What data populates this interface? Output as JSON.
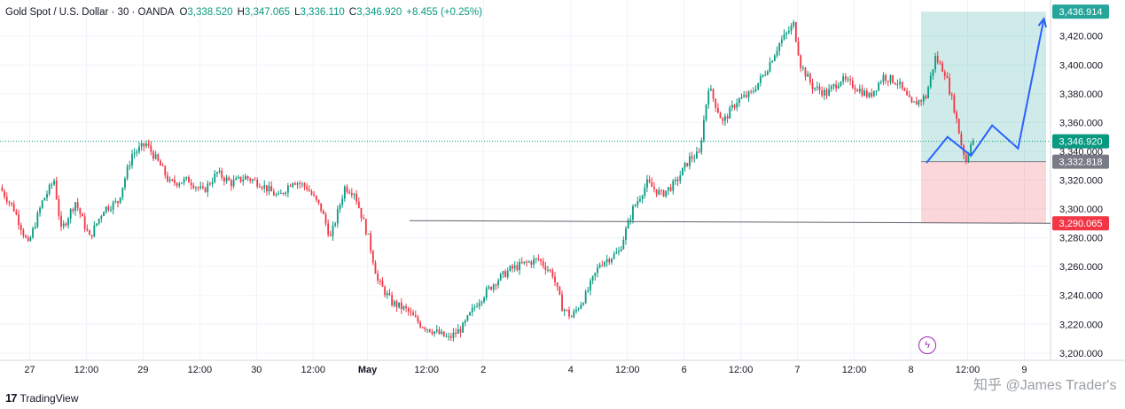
{
  "header": {
    "symbol": "Gold Spot / U.S. Dollar · 30 · OANDA",
    "open_label": "O",
    "open": "3,338.520",
    "high_label": "H",
    "high": "3,347.065",
    "low_label": "L",
    "low": "3,336.110",
    "close_label": "C",
    "close": "3,346.920",
    "change": "+8.455 (+0.25%)"
  },
  "footer": {
    "brand_logo": "17",
    "brand": "TradingView"
  },
  "watermark": "知乎 @James Trader's",
  "colors": {
    "up": "#089981",
    "down": "#f23645",
    "arrow": "#2962ff",
    "target": "#26a69a",
    "stop": "#f23645",
    "price_line": "#089981"
  },
  "chart_data": {
    "type": "candlestick",
    "title": "Gold Spot / U.S. Dollar",
    "interval": "30",
    "ylim": [
      3195,
      3445
    ],
    "yticks": [
      3200,
      3220,
      3240,
      3260,
      3280,
      3300,
      3320,
      3340,
      3360,
      3380,
      3400,
      3420
    ],
    "ytick_labels": [
      "3,200.000",
      "3,220.000",
      "3,240.000",
      "3,260.000",
      "3,280.000",
      "3,300.000",
      "3,320.000",
      "3,340.000",
      "3,360.000",
      "3,380.000",
      "3,400.000",
      "3,420.000"
    ],
    "xtick_labels": [
      "27",
      "12:00",
      "29",
      "12:00",
      "30",
      "12:00",
      "May",
      "12:00",
      "2",
      "4",
      "12:00",
      "6",
      "12:00",
      "7",
      "12:00",
      "8",
      "12:00",
      "9"
    ],
    "xtick_index": [
      12,
      36,
      60,
      84,
      108,
      132,
      155,
      180,
      204,
      241,
      265,
      289,
      313,
      337,
      361,
      385,
      409,
      433
    ],
    "price_path": [
      [
        0,
        3315
      ],
      [
        6,
        3300
      ],
      [
        12,
        3275
      ],
      [
        18,
        3305
      ],
      [
        23,
        3320
      ],
      [
        26,
        3285
      ],
      [
        32,
        3305
      ],
      [
        38,
        3280
      ],
      [
        44,
        3300
      ],
      [
        50,
        3305
      ],
      [
        56,
        3338
      ],
      [
        62,
        3345
      ],
      [
        68,
        3330
      ],
      [
        72,
        3318
      ],
      [
        80,
        3320
      ],
      [
        86,
        3312
      ],
      [
        92,
        3325
      ],
      [
        98,
        3318
      ],
      [
        104,
        3322
      ],
      [
        110,
        3318
      ],
      [
        118,
        3308
      ],
      [
        124,
        3320
      ],
      [
        130,
        3315
      ],
      [
        136,
        3300
      ],
      [
        140,
        3280
      ],
      [
        146,
        3315
      ],
      [
        150,
        3312
      ],
      [
        156,
        3280
      ],
      [
        160,
        3250
      ],
      [
        166,
        3235
      ],
      [
        172,
        3230
      ],
      [
        178,
        3220
      ],
      [
        184,
        3215
      ],
      [
        190,
        3210
      ],
      [
        196,
        3218
      ],
      [
        202,
        3235
      ],
      [
        210,
        3250
      ],
      [
        216,
        3258
      ],
      [
        222,
        3262
      ],
      [
        228,
        3265
      ],
      [
        234,
        3255
      ],
      [
        238,
        3232
      ],
      [
        242,
        3225
      ],
      [
        248,
        3240
      ],
      [
        254,
        3262
      ],
      [
        262,
        3270
      ],
      [
        268,
        3300
      ],
      [
        274,
        3318
      ],
      [
        280,
        3310
      ],
      [
        286,
        3318
      ],
      [
        292,
        3335
      ],
      [
        296,
        3338
      ],
      [
        300,
        3385
      ],
      [
        306,
        3360
      ],
      [
        312,
        3375
      ],
      [
        318,
        3380
      ],
      [
        324,
        3395
      ],
      [
        330,
        3415
      ],
      [
        336,
        3428
      ],
      [
        339,
        3400
      ],
      [
        344,
        3385
      ],
      [
        350,
        3380
      ],
      [
        356,
        3390
      ],
      [
        362,
        3385
      ],
      [
        368,
        3378
      ],
      [
        374,
        3392
      ],
      [
        380,
        3388
      ],
      [
        386,
        3372
      ],
      [
        392,
        3378
      ],
      [
        396,
        3405
      ],
      [
        400,
        3395
      ],
      [
        404,
        3370
      ],
      [
        407,
        3345
      ],
      [
        409,
        3333
      ],
      [
        411,
        3347
      ]
    ],
    "last_price": {
      "value": 3346.92,
      "label": "3,346.920"
    },
    "position": {
      "entry": {
        "value": 3332.818,
        "label": "3,332.818"
      },
      "target": {
        "value": 3436.914,
        "label": "3,436.914"
      },
      "stop": {
        "value": 3290.065,
        "label": "3,290.065"
      }
    },
    "horizontal_line": {
      "value": 3290.065
    },
    "projection_path": [
      [
        3332,
        0
      ],
      [
        3350,
        9
      ],
      [
        3337,
        19
      ],
      [
        3358,
        28
      ],
      [
        3342,
        39
      ],
      [
        3432,
        50
      ]
    ]
  }
}
